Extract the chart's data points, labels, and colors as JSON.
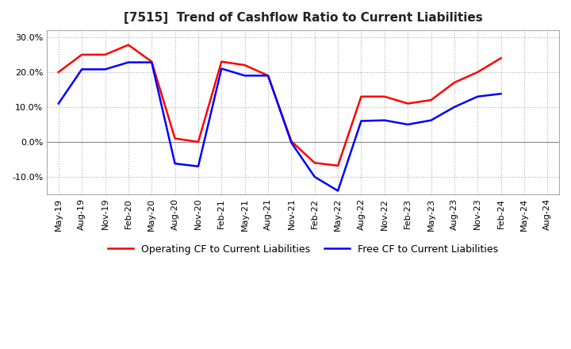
{
  "title": "[7515]  Trend of Cashflow Ratio to Current Liabilities",
  "x_labels": [
    "May-19",
    "Aug-19",
    "Nov-19",
    "Feb-20",
    "May-20",
    "Aug-20",
    "Nov-20",
    "Feb-21",
    "May-21",
    "Aug-21",
    "Nov-21",
    "Feb-22",
    "May-22",
    "Aug-22",
    "Nov-22",
    "Feb-23",
    "May-23",
    "Aug-23",
    "Nov-23",
    "Feb-24",
    "May-24",
    "Aug-24"
  ],
  "operating_cf": [
    0.2,
    0.25,
    0.25,
    0.278,
    0.23,
    0.01,
    0.0,
    0.23,
    0.22,
    0.19,
    0.002,
    -0.06,
    -0.068,
    0.13,
    0.13,
    0.11,
    0.12,
    0.17,
    0.2,
    0.24,
    null,
    null
  ],
  "free_cf": [
    0.11,
    0.208,
    0.208,
    0.228,
    0.228,
    -0.062,
    -0.07,
    0.21,
    0.19,
    0.19,
    -0.002,
    -0.1,
    -0.14,
    0.06,
    0.062,
    0.05,
    0.062,
    0.1,
    0.13,
    0.138,
    null,
    null
  ],
  "operating_color": "#ff0000",
  "free_color": "#0000ff",
  "ylim": [
    -0.15,
    0.32
  ],
  "yticks": [
    -0.1,
    0.0,
    0.1,
    0.2,
    0.3
  ],
  "grid_color": "#b0b0b0",
  "background_color": "#ffffff",
  "legend_op": "Operating CF to Current Liabilities",
  "legend_free": "Free CF to Current Liabilities",
  "title_fontsize": 11,
  "tick_fontsize": 8
}
